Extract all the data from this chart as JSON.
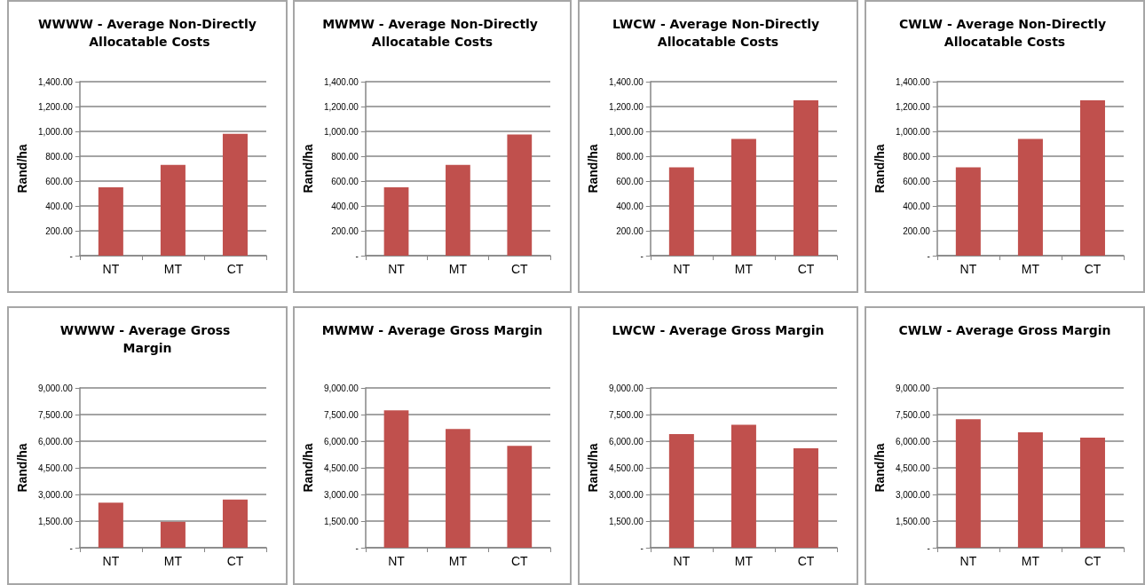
{
  "chart_data": [
    {
      "type": "bar",
      "title": "WWWW - Average Non-Directly Allocatable Costs",
      "ylabel": "Rand/ha",
      "categories": [
        "NT",
        "MT",
        "CT"
      ],
      "values": [
        550,
        730,
        980
      ],
      "color": "#c0504d",
      "ylim": [
        0,
        1400
      ],
      "yticks": [
        {
          "value": 0,
          "label": "-"
        },
        {
          "value": 200,
          "label": "200.00"
        },
        {
          "value": 400,
          "label": "400.00"
        },
        {
          "value": 600,
          "label": "600.00"
        },
        {
          "value": 800,
          "label": "800.00"
        },
        {
          "value": 1000,
          "label": "1,000.00"
        },
        {
          "value": 1200,
          "label": "1,200.00"
        },
        {
          "value": 1400,
          "label": "1,400.00"
        }
      ],
      "grid": "y"
    },
    {
      "type": "bar",
      "title": "MWMW - Average Non-Directly Allocatable Costs",
      "ylabel": "Rand/ha",
      "categories": [
        "NT",
        "MT",
        "CT"
      ],
      "values": [
        550,
        730,
        975
      ],
      "color": "#c0504d",
      "ylim": [
        0,
        1400
      ],
      "yticks": [
        {
          "value": 0,
          "label": "-"
        },
        {
          "value": 200,
          "label": "200.00"
        },
        {
          "value": 400,
          "label": "400.00"
        },
        {
          "value": 600,
          "label": "600.00"
        },
        {
          "value": 800,
          "label": "800.00"
        },
        {
          "value": 1000,
          "label": "1,000.00"
        },
        {
          "value": 1200,
          "label": "1,200.00"
        },
        {
          "value": 1400,
          "label": "1,400.00"
        }
      ],
      "grid": "y"
    },
    {
      "type": "bar",
      "title": "LWCW - Average Non-Directly Allocatable Costs",
      "ylabel": "Rand/ha",
      "categories": [
        "NT",
        "MT",
        "CT"
      ],
      "values": [
        710,
        940,
        1250
      ],
      "color": "#c0504d",
      "ylim": [
        0,
        1400
      ],
      "yticks": [
        {
          "value": 0,
          "label": "-"
        },
        {
          "value": 200,
          "label": "200.00"
        },
        {
          "value": 400,
          "label": "400.00"
        },
        {
          "value": 600,
          "label": "600.00"
        },
        {
          "value": 800,
          "label": "800.00"
        },
        {
          "value": 1000,
          "label": "1,000.00"
        },
        {
          "value": 1200,
          "label": "1,200.00"
        },
        {
          "value": 1400,
          "label": "1,400.00"
        }
      ],
      "grid": "y"
    },
    {
      "type": "bar",
      "title": "CWLW - Average Non-Directly Allocatable Costs",
      "ylabel": "Rand/ha",
      "categories": [
        "NT",
        "MT",
        "CT"
      ],
      "values": [
        710,
        940,
        1250
      ],
      "color": "#c0504d",
      "ylim": [
        0,
        1400
      ],
      "yticks": [
        {
          "value": 0,
          "label": "-"
        },
        {
          "value": 200,
          "label": "200.00"
        },
        {
          "value": 400,
          "label": "400.00"
        },
        {
          "value": 600,
          "label": "600.00"
        },
        {
          "value": 800,
          "label": "800.00"
        },
        {
          "value": 1000,
          "label": "1,000.00"
        },
        {
          "value": 1200,
          "label": "1,200.00"
        },
        {
          "value": 1400,
          "label": "1,400.00"
        }
      ],
      "grid": "y"
    },
    {
      "type": "bar",
      "title": "WWWW - Average Gross Margin",
      "ylabel": "Rand/ha",
      "categories": [
        "NT",
        "MT",
        "CT"
      ],
      "values": [
        2540,
        1460,
        2710
      ],
      "color": "#c0504d",
      "ylim": [
        0,
        9000
      ],
      "yticks": [
        {
          "value": 0,
          "label": "-"
        },
        {
          "value": 1500,
          "label": "1,500.00"
        },
        {
          "value": 3000,
          "label": "3,000.00"
        },
        {
          "value": 4500,
          "label": "4,500.00"
        },
        {
          "value": 6000,
          "label": "6,000.00"
        },
        {
          "value": 7500,
          "label": "7,500.00"
        },
        {
          "value": 9000,
          "label": "9,000.00"
        }
      ],
      "grid": "y"
    },
    {
      "type": "bar",
      "title": "MWMW - Average Gross Margin",
      "ylabel": "Rand/ha",
      "categories": [
        "NT",
        "MT",
        "CT"
      ],
      "values": [
        7740,
        6690,
        5740
      ],
      "color": "#c0504d",
      "ylim": [
        0,
        9000
      ],
      "yticks": [
        {
          "value": 0,
          "label": "-"
        },
        {
          "value": 1500,
          "label": "1,500.00"
        },
        {
          "value": 3000,
          "label": "3,000.00"
        },
        {
          "value": 4500,
          "label": "4,500.00"
        },
        {
          "value": 6000,
          "label": "6,000.00"
        },
        {
          "value": 7500,
          "label": "7,500.00"
        },
        {
          "value": 9000,
          "label": "9,000.00"
        }
      ],
      "grid": "y"
    },
    {
      "type": "bar",
      "title": "LWCW - Average Gross Margin",
      "ylabel": "Rand/ha",
      "categories": [
        "NT",
        "MT",
        "CT"
      ],
      "values": [
        6400,
        6920,
        5600
      ],
      "color": "#c0504d",
      "ylim": [
        0,
        9000
      ],
      "yticks": [
        {
          "value": 0,
          "label": "-"
        },
        {
          "value": 1500,
          "label": "1,500.00"
        },
        {
          "value": 3000,
          "label": "3,000.00"
        },
        {
          "value": 4500,
          "label": "4,500.00"
        },
        {
          "value": 6000,
          "label": "6,000.00"
        },
        {
          "value": 7500,
          "label": "7,500.00"
        },
        {
          "value": 9000,
          "label": "9,000.00"
        }
      ],
      "grid": "y"
    },
    {
      "type": "bar",
      "title": "CWLW - Average Gross Margin",
      "ylabel": "Rand/ha",
      "categories": [
        "NT",
        "MT",
        "CT"
      ],
      "values": [
        7240,
        6500,
        6200
      ],
      "color": "#c0504d",
      "ylim": [
        0,
        9000
      ],
      "yticks": [
        {
          "value": 0,
          "label": "-"
        },
        {
          "value": 1500,
          "label": "1,500.00"
        },
        {
          "value": 3000,
          "label": "3,000.00"
        },
        {
          "value": 4500,
          "label": "4,500.00"
        },
        {
          "value": 6000,
          "label": "6,000.00"
        },
        {
          "value": 7500,
          "label": "7,500.00"
        },
        {
          "value": 9000,
          "label": "9,000.00"
        }
      ],
      "grid": "y"
    }
  ]
}
